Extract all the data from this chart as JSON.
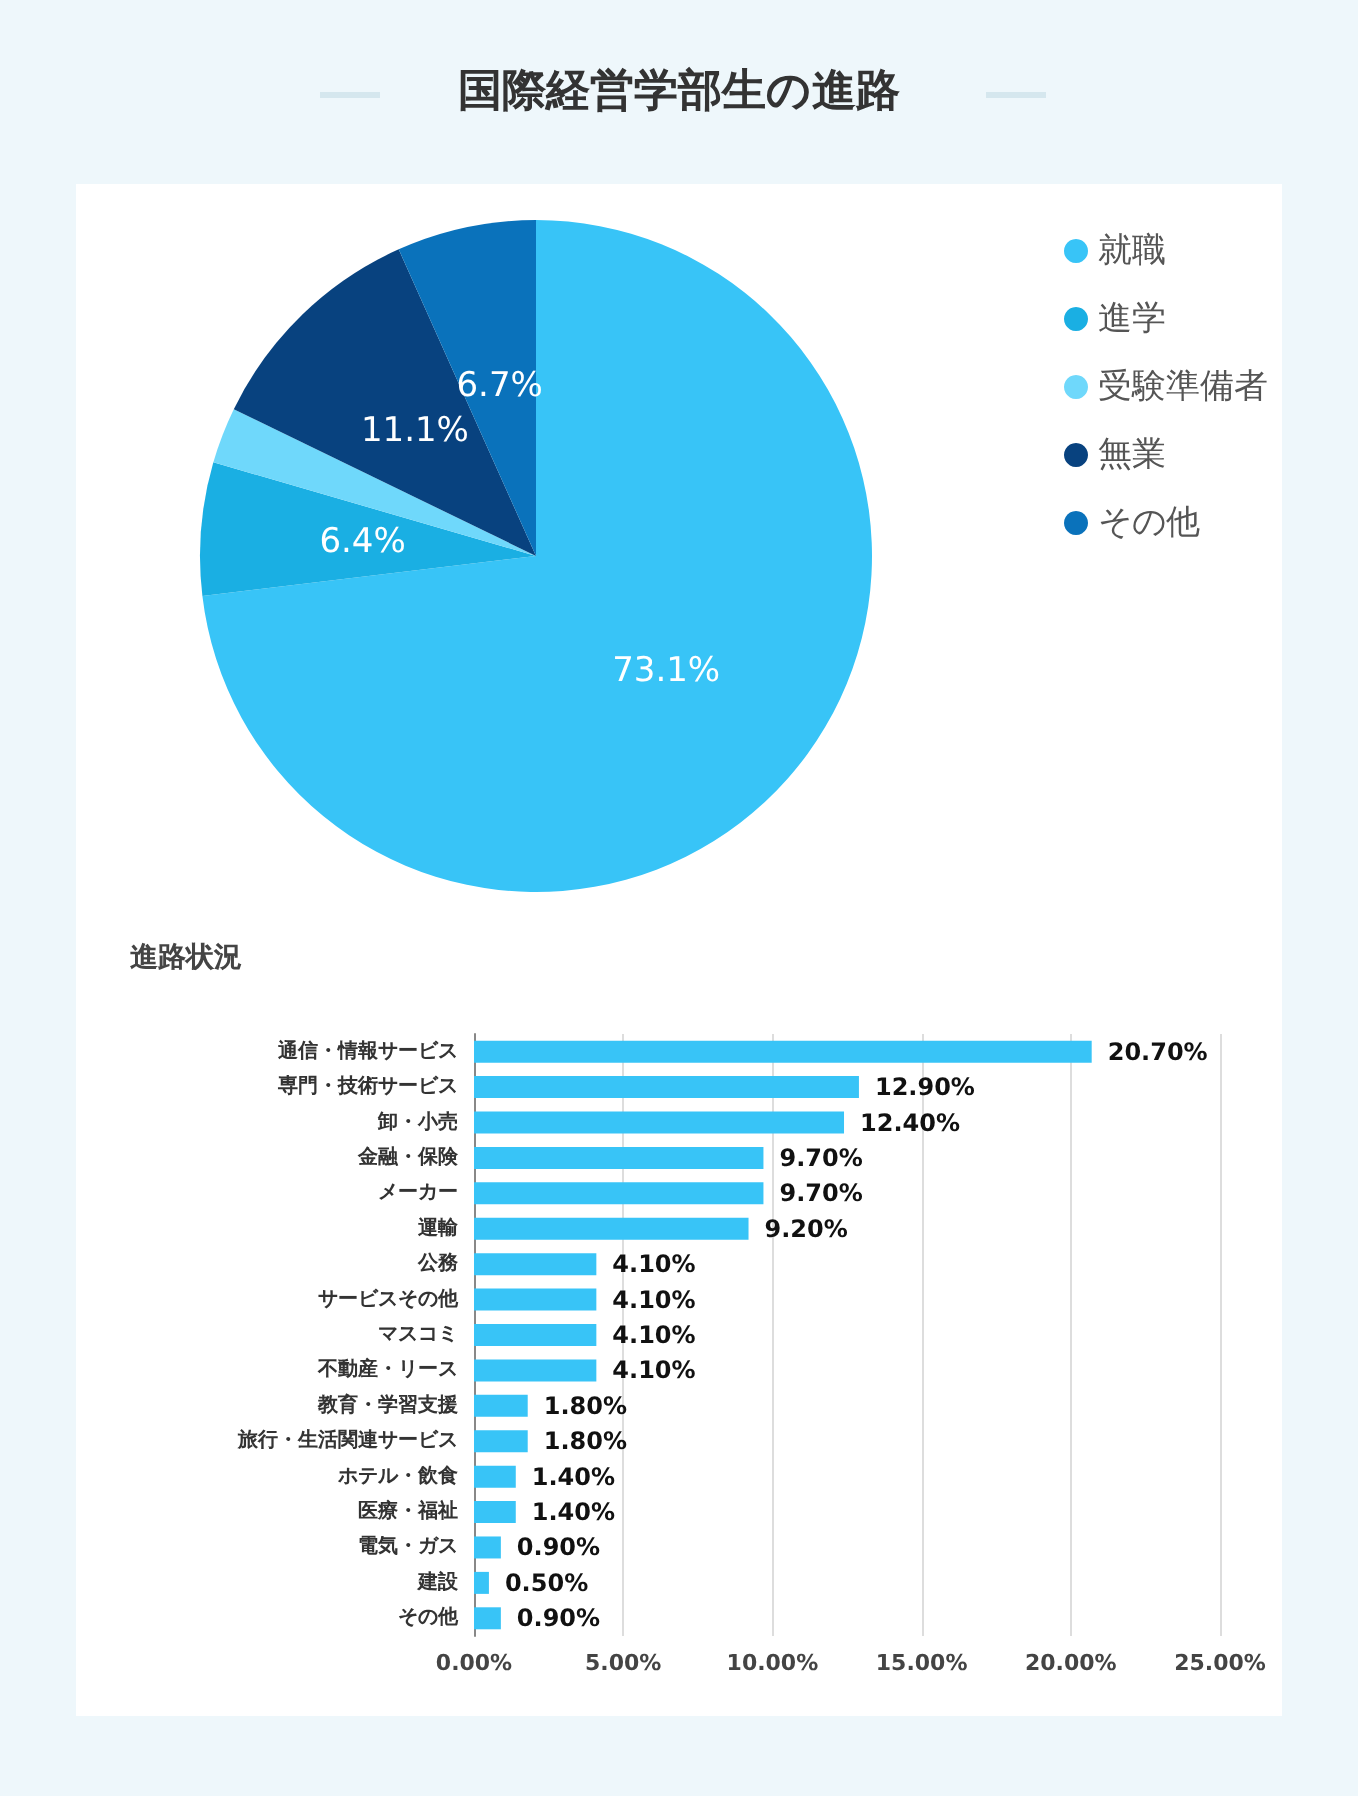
{
  "chart_data": [
    {
      "type": "pie",
      "title": "国際経営学部生の進路",
      "categories": [
        "就職",
        "進学",
        "受験準備者",
        "無業",
        "その他"
      ],
      "values": [
        73.1,
        6.4,
        2.7,
        11.1,
        6.7
      ],
      "colors": [
        "#38c4f7",
        "#1aafe3",
        "#6fd8fb",
        "#08427f",
        "#0a72bb"
      ],
      "value_labels": [
        "73.1%",
        "6.4%",
        null,
        "11.1%",
        "6.7%"
      ],
      "legend": "right"
    },
    {
      "type": "bar",
      "orientation": "horizontal",
      "title": "進路状況",
      "categories": [
        "通信・情報サービス",
        "専門・技術サービス",
        "卸・小売",
        "金融・保険",
        "メーカー",
        "運輸",
        "公務",
        "サービスその他",
        "マスコミ",
        "不動産・リース",
        "教育・学習支援",
        "旅行・生活関連サービス",
        "ホテル・飲食",
        "医療・福祉",
        "電気・ガス",
        "建設",
        "その他"
      ],
      "values": [
        20.7,
        12.9,
        12.4,
        9.7,
        9.7,
        9.2,
        4.1,
        4.1,
        4.1,
        4.1,
        1.8,
        1.8,
        1.4,
        1.4,
        0.9,
        0.5,
        0.9
      ],
      "value_labels": [
        "20.70%",
        "12.90%",
        "12.40%",
        "9.70%",
        "9.70%",
        "9.20%",
        "4.10%",
        "4.10%",
        "4.10%",
        "4.10%",
        "1.80%",
        "1.80%",
        "1.40%",
        "1.40%",
        "0.90%",
        "0.50%",
        "0.90%"
      ],
      "color": "#38c4f7",
      "xlim": [
        0,
        25
      ],
      "xticks": [
        {
          "value": 0,
          "label": "0.00%"
        },
        {
          "value": 5,
          "label": "5.00%"
        },
        {
          "value": 10,
          "label": "10.00%"
        },
        {
          "value": 15,
          "label": "15.00%"
        },
        {
          "value": 20,
          "label": "20.00%"
        },
        {
          "value": 25,
          "label": "25.00%"
        }
      ],
      "grid": "x"
    }
  ]
}
